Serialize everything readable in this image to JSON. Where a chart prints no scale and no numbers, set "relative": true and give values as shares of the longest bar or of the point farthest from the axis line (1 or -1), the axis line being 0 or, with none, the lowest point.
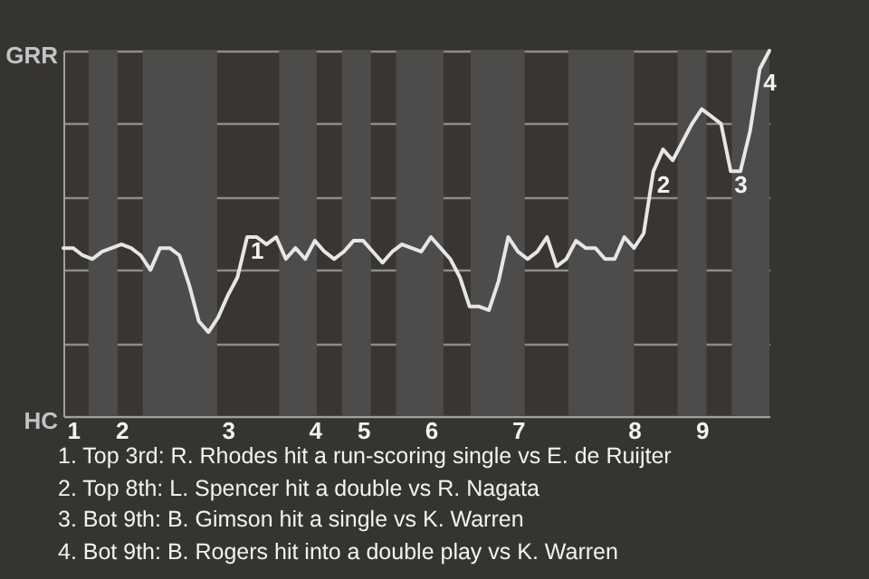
{
  "chart_data": {
    "type": "line",
    "relative": true,
    "categories": [
      null,
      "1",
      null,
      null,
      null,
      null,
      "2",
      null,
      null,
      null,
      null,
      null,
      null,
      null,
      null,
      null,
      null,
      "3",
      null,
      null,
      null,
      null,
      null,
      null,
      null,
      null,
      "4",
      null,
      null,
      null,
      null,
      "5",
      null,
      null,
      null,
      null,
      null,
      null,
      "6",
      null,
      null,
      null,
      null,
      null,
      null,
      null,
      null,
      "7",
      null,
      null,
      null,
      null,
      null,
      null,
      null,
      null,
      null,
      null,
      null,
      "8",
      null,
      null,
      null,
      null,
      null,
      null,
      "9",
      null,
      null,
      null,
      null,
      null,
      null,
      null
    ],
    "series": [
      {
        "color": "#e6e6e6",
        "values": [
          0.46,
          0.46,
          0.44,
          0.43,
          0.45,
          0.46,
          0.47,
          0.46,
          0.44,
          0.4,
          0.46,
          0.46,
          0.44,
          0.36,
          0.26,
          0.23,
          0.27,
          0.33,
          0.38,
          0.49,
          0.49,
          0.47,
          0.49,
          0.43,
          0.46,
          0.43,
          0.48,
          0.45,
          0.43,
          0.45,
          0.48,
          0.48,
          0.45,
          0.42,
          0.45,
          0.47,
          0.46,
          0.45,
          0.49,
          0.46,
          0.43,
          0.38,
          0.3,
          0.3,
          0.29,
          0.37,
          0.49,
          0.45,
          0.43,
          0.45,
          0.49,
          0.41,
          0.43,
          0.48,
          0.46,
          0.46,
          0.43,
          0.43,
          0.49,
          0.46,
          0.5,
          0.67,
          0.73,
          0.7,
          0.75,
          0.8,
          0.84,
          0.82,
          0.8,
          0.67,
          0.67,
          0.78,
          0.95,
          1
        ]
      }
    ],
    "grid": "y",
    "annotations": [
      "GRR",
      "HC",
      {
        "text": "1",
        "y": 0.49
      },
      {
        "text": "2",
        "y": 0.67
      },
      {
        "text": "3",
        "y": 0.67
      },
      {
        "text": "4",
        "y": 0.95
      },
      "1. Top 3rd: R. Rhodes hit a run-scoring single vs E. de Ruijter",
      "2. Top 8th: L. Spencer hit a double vs R. Nagata",
      "3. Bot 9th: B. Gimson hit a single vs K. Warren",
      "4. Bot 9th: B. Rogers hit into a double play vs K. Warren"
    ]
  }
}
